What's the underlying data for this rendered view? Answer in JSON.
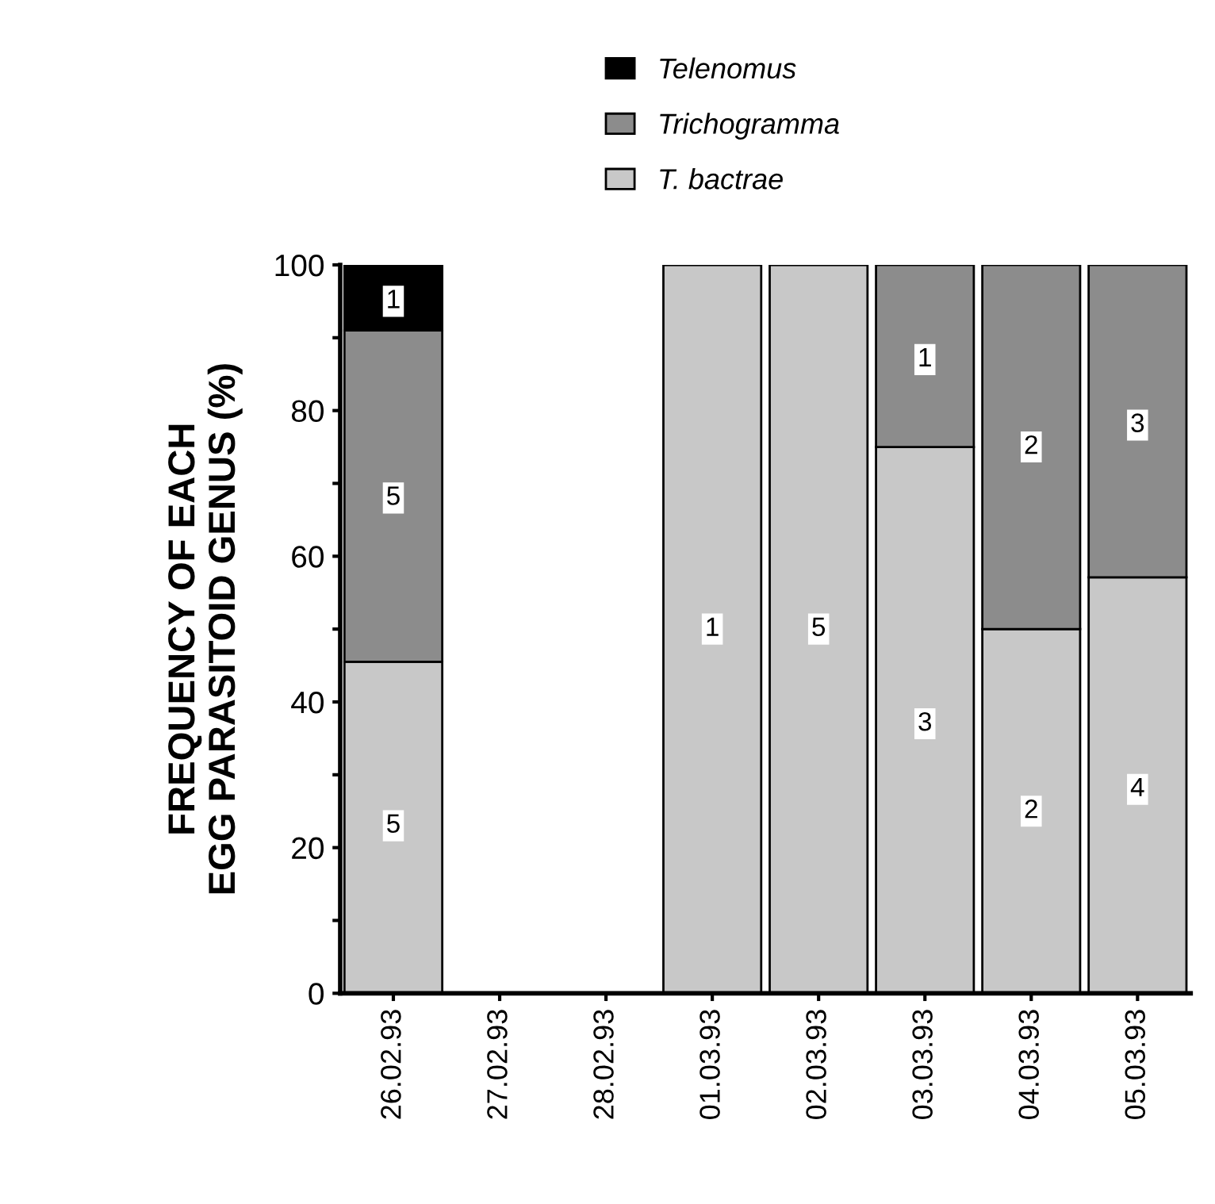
{
  "chart_data": {
    "type": "bar",
    "stacked": true,
    "ylabel": "FREQUENCY OF EACH\nEGG PARASITOID GENUS (%)",
    "categories": [
      "26.02.93",
      "27.02.93",
      "28.02.93",
      "01.03.93",
      "02.03.93",
      "03.03.93",
      "04.03.93",
      "05.03.93"
    ],
    "series": [
      {
        "name": "T. bactrae",
        "color": "#c8c8c8",
        "values": [
          45.5,
          0,
          0,
          100,
          100,
          75,
          50,
          57.1
        ]
      },
      {
        "name": "Trichogramma",
        "color": "#8c8c8c",
        "values": [
          45.5,
          0,
          0,
          0,
          0,
          25,
          50,
          42.9
        ]
      },
      {
        "name": "Telenomus",
        "color": "#000000",
        "values": [
          9,
          0,
          0,
          0,
          0,
          0,
          0,
          0
        ]
      }
    ],
    "annotations": [
      {
        "text": "5",
        "x": "26.02.93",
        "y": 23
      },
      {
        "text": "5",
        "x": "26.02.93",
        "y": 68
      },
      {
        "text": "1",
        "x": "26.02.93",
        "y": 95
      },
      {
        "text": "1",
        "x": "01.03.93",
        "y": 50
      },
      {
        "text": "5",
        "x": "02.03.93",
        "y": 50
      },
      {
        "text": "3",
        "x": "03.03.93",
        "y": 37
      },
      {
        "text": "1",
        "x": "03.03.93",
        "y": 87
      },
      {
        "text": "2",
        "x": "04.03.93",
        "y": 25
      },
      {
        "text": "2",
        "x": "04.03.93",
        "y": 75
      },
      {
        "text": "4",
        "x": "05.03.93",
        "y": 28
      },
      {
        "text": "3",
        "x": "05.03.93",
        "y": 78
      }
    ],
    "ylim": [
      0,
      100
    ],
    "yticks": [
      0,
      {
        "value": 10,
        "label": null
      },
      20,
      {
        "value": 30,
        "label": null
      },
      40,
      {
        "value": 50,
        "label": null
      },
      60,
      {
        "value": 70,
        "label": null
      },
      80,
      {
        "value": 90,
        "label": null
      },
      100
    ],
    "legend": "top",
    "grid": false
  }
}
